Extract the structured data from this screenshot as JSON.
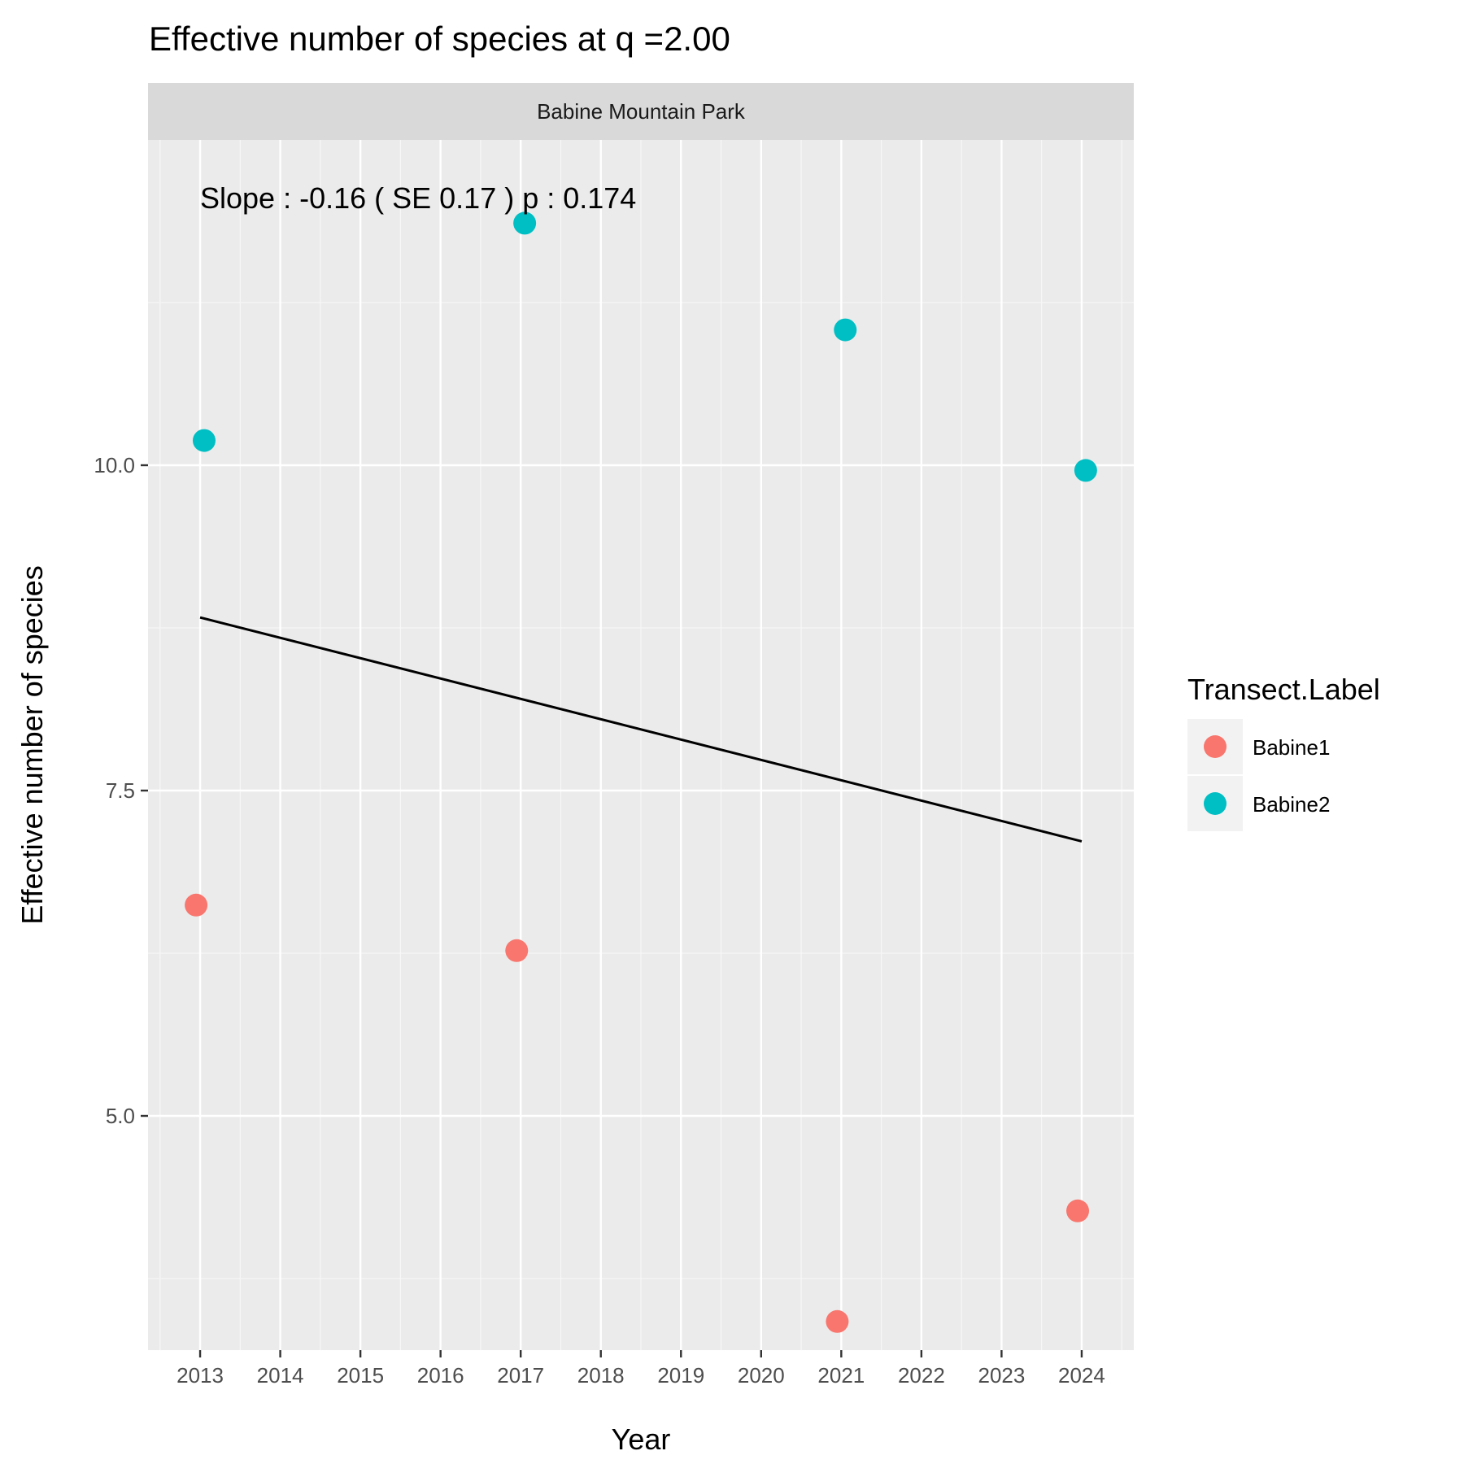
{
  "chart_data": {
    "type": "scatter",
    "title": "Effective number of species at q =2.00",
    "facet_label": "Babine Mountain Park",
    "xlabel": "Year",
    "ylabel": "Effective number of species",
    "x_ticks": [
      2013,
      2014,
      2015,
      2016,
      2017,
      2018,
      2019,
      2020,
      2021,
      2022,
      2023,
      2024
    ],
    "y_ticks": [
      5.0,
      7.5,
      10.0
    ],
    "y_tick_labels": [
      "5.0",
      "7.5",
      "10.0"
    ],
    "xlim": [
      2012.35,
      2024.65
    ],
    "ylim": [
      3.2,
      12.5
    ],
    "grid": true,
    "legend": {
      "title": "Transect.Label",
      "placement": "right"
    },
    "series": [
      {
        "name": "Babine1",
        "color": "#F8766D",
        "points": [
          {
            "x": 2013,
            "y": 6.62
          },
          {
            "x": 2017,
            "y": 6.27
          },
          {
            "x": 2021,
            "y": 3.42
          },
          {
            "x": 2024,
            "y": 4.27
          }
        ]
      },
      {
        "name": "Babine2",
        "color": "#00BFC4",
        "points": [
          {
            "x": 2013,
            "y": 10.19
          },
          {
            "x": 2017,
            "y": 11.86
          },
          {
            "x": 2021,
            "y": 11.04
          },
          {
            "x": 2024,
            "y": 9.96
          }
        ]
      }
    ],
    "trend_line": {
      "x": [
        2013,
        2024
      ],
      "y": [
        8.83,
        7.11
      ],
      "color": "#000000"
    },
    "annotation": "Slope :  -0.16  ( SE  0.17 )  p : 0.174"
  }
}
